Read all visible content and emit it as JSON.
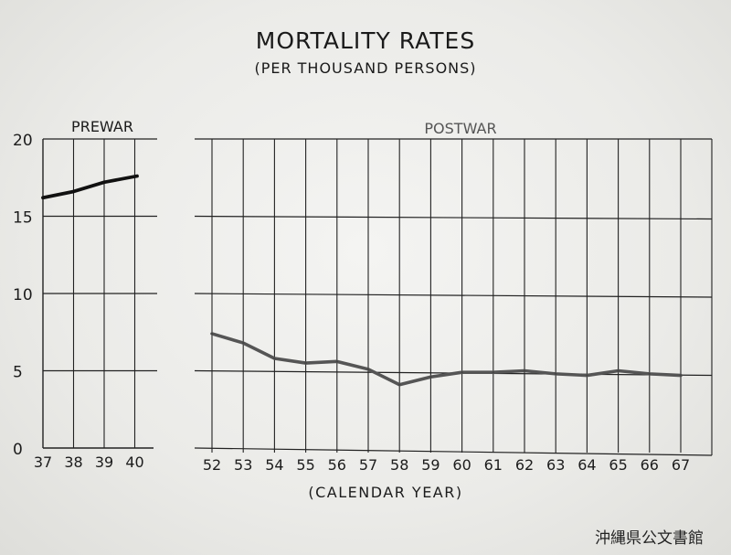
{
  "title": "MORTALITY RATES",
  "subtitle": "(PER THOUSAND PERSONS)",
  "archive_stamp": "沖縄県公文書館",
  "chart_data": [
    {
      "type": "line",
      "panel": "prewar",
      "panel_label": "PREWAR",
      "categories": [
        "37",
        "38",
        "39",
        "40"
      ],
      "values": [
        16.2,
        16.6,
        17.2,
        17.6
      ],
      "yticks": [
        "0",
        "5",
        "10",
        "15",
        "20"
      ],
      "ylim": [
        0,
        20
      ],
      "grid": true
    },
    {
      "type": "line",
      "panel": "postwar",
      "panel_label": "POSTWAR",
      "categories": [
        "52",
        "53",
        "54",
        "55",
        "56",
        "57",
        "58",
        "59",
        "60",
        "61",
        "62",
        "63",
        "64",
        "65",
        "66",
        "67"
      ],
      "values": [
        7.4,
        6.8,
        5.8,
        5.5,
        5.6,
        5.1,
        4.1,
        4.6,
        4.9,
        4.9,
        5.0,
        4.8,
        4.7,
        5.0,
        4.8,
        4.7
      ],
      "ylim": [
        0,
        20
      ],
      "xlabel": "(CALENDAR YEAR)",
      "grid": true
    }
  ]
}
